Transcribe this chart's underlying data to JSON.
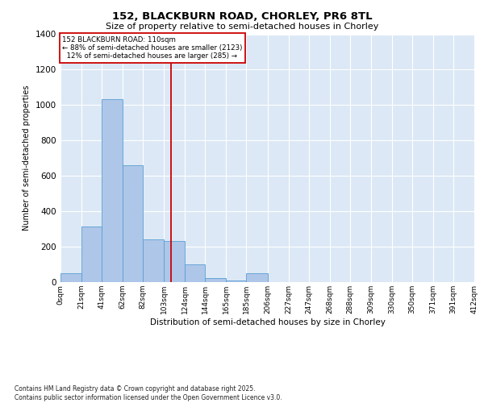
{
  "title_line1": "152, BLACKBURN ROAD, CHORLEY, PR6 8TL",
  "title_line2": "Size of property relative to semi-detached houses in Chorley",
  "xlabel": "Distribution of semi-detached houses by size in Chorley",
  "ylabel": "Number of semi-detached properties",
  "footer": "Contains HM Land Registry data © Crown copyright and database right 2025.\nContains public sector information licensed under the Open Government Licence v3.0.",
  "bin_labels": [
    "0sqm",
    "21sqm",
    "41sqm",
    "62sqm",
    "82sqm",
    "103sqm",
    "124sqm",
    "144sqm",
    "165sqm",
    "185sqm",
    "206sqm",
    "227sqm",
    "247sqm",
    "268sqm",
    "288sqm",
    "309sqm",
    "330sqm",
    "350sqm",
    "371sqm",
    "391sqm",
    "412sqm"
  ],
  "bar_values": [
    50,
    315,
    1035,
    660,
    240,
    230,
    100,
    25,
    10,
    50,
    0,
    0,
    0,
    0,
    0,
    0,
    0,
    0,
    0,
    0
  ],
  "bin_edges": [
    0,
    21,
    41,
    62,
    82,
    103,
    124,
    144,
    165,
    185,
    206,
    227,
    247,
    268,
    288,
    309,
    330,
    350,
    371,
    391,
    412
  ],
  "property_size": 110,
  "pct_smaller": 88,
  "count_smaller": 2123,
  "pct_larger": 12,
  "count_larger": 285,
  "property_label": "152 BLACKBURN ROAD: 110sqm",
  "bar_color": "#aec6e8",
  "bar_edge_color": "#5a9fd4",
  "vline_color": "#cc0000",
  "bg_color": "#dce8f5",
  "ylim": [
    0,
    1400
  ],
  "yticks": [
    0,
    200,
    400,
    600,
    800,
    1000,
    1200,
    1400
  ]
}
